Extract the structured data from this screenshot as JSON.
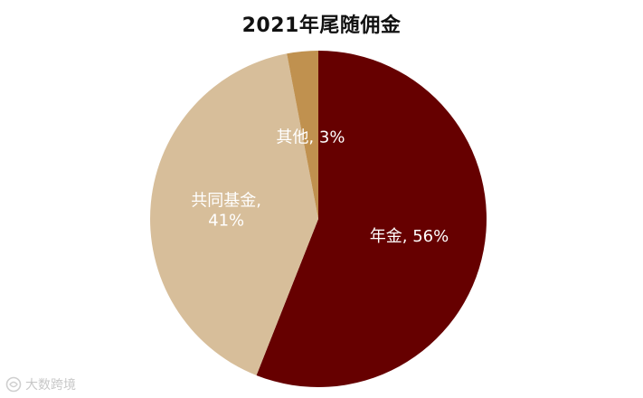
{
  "chart_data": {
    "type": "pie",
    "title": "2021年尾随佣金",
    "start_angle_deg": 0,
    "direction": "clockwise",
    "slices": [
      {
        "label": "年金",
        "value": 56,
        "display": "年金, 56%",
        "color": "#660000",
        "label_color": "#ffffff"
      },
      {
        "label": "共同基金",
        "value": 41,
        "display_lines": [
          "共同基金,",
          "41%"
        ],
        "color": "#D7BE9A",
        "label_color": "#ffffff"
      },
      {
        "label": "其他",
        "value": 3,
        "display": "其他, 3%",
        "color": "#C0914F",
        "label_color": "#ffffff"
      }
    ]
  },
  "watermark": {
    "text": "大数跨境",
    "icon": "brand-logo-icon"
  }
}
